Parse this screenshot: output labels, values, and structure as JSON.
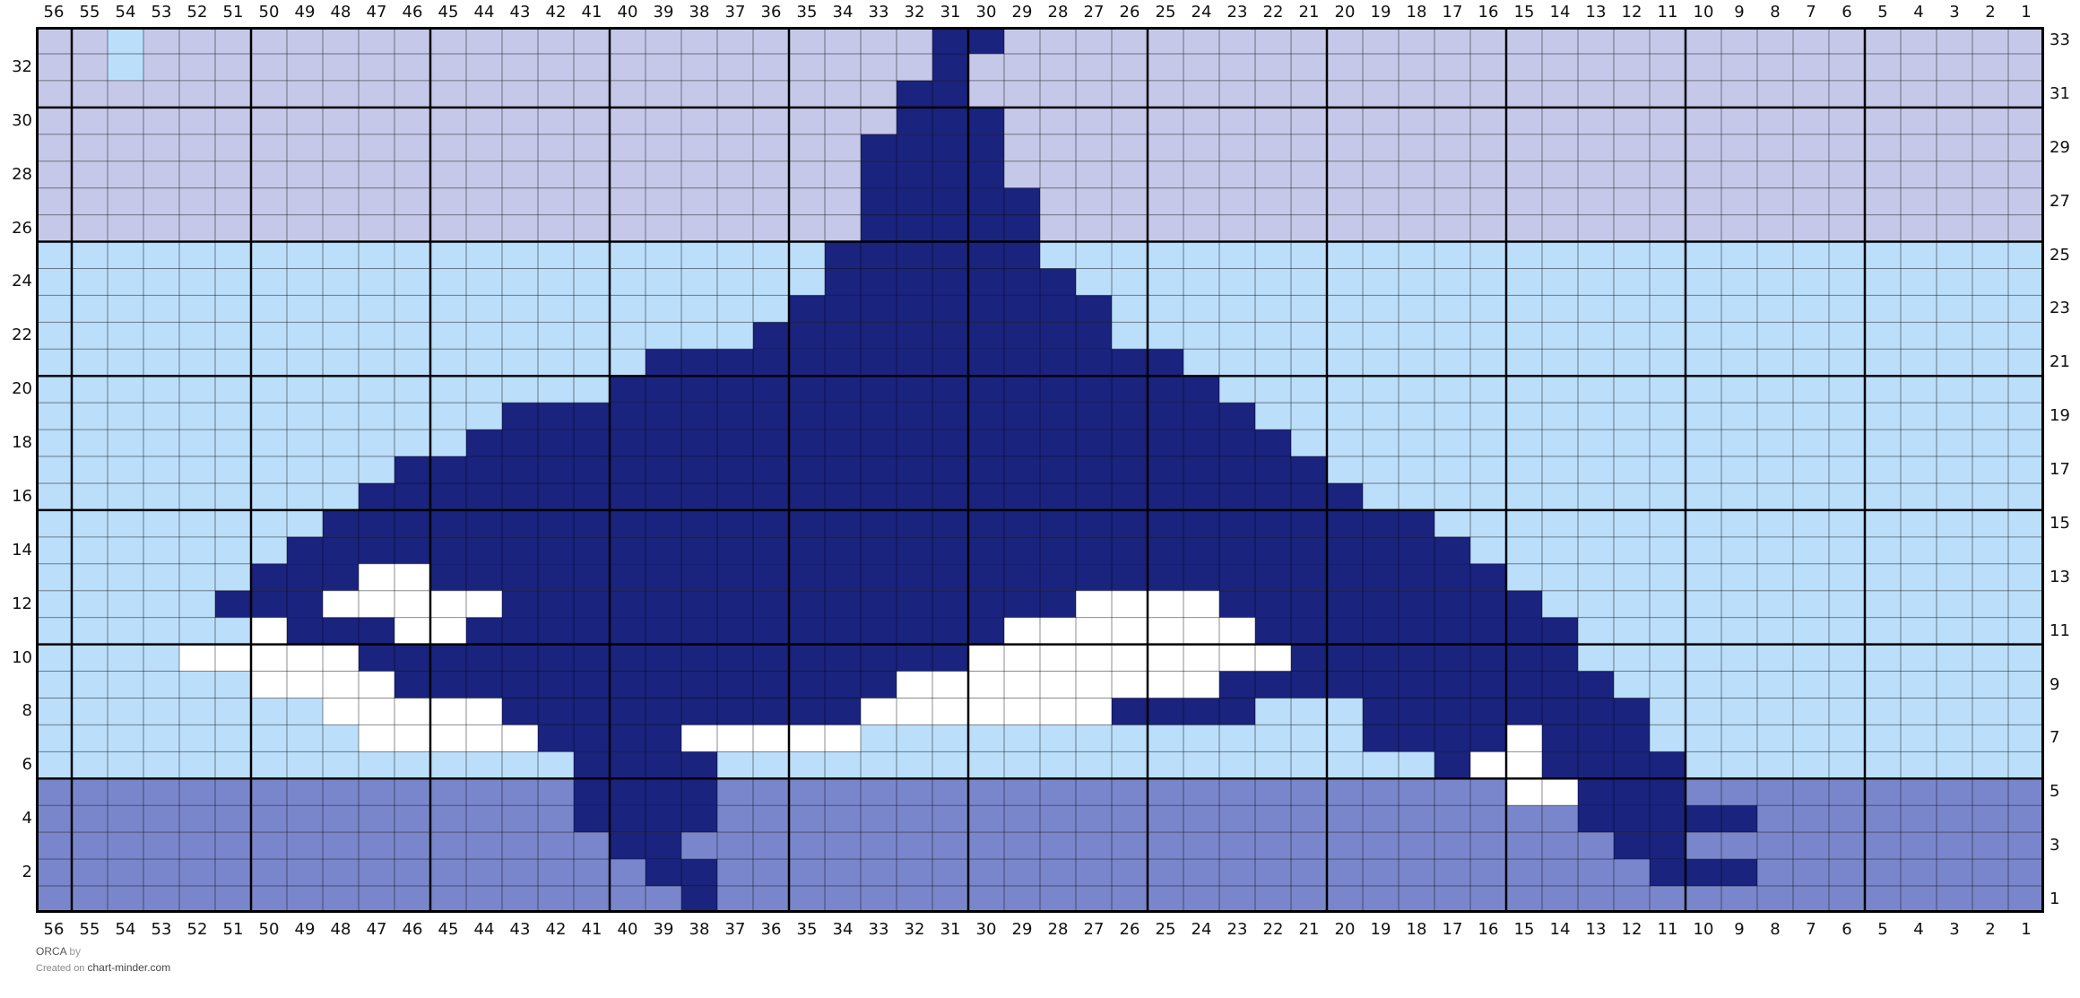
{
  "chart": {
    "columns": 56,
    "rows": 33,
    "column_labels": [
      56,
      55,
      54,
      53,
      52,
      51,
      50,
      49,
      48,
      47,
      46,
      45,
      44,
      43,
      42,
      41,
      40,
      39,
      38,
      37,
      36,
      35,
      34,
      33,
      32,
      31,
      30,
      29,
      28,
      27,
      26,
      25,
      24,
      23,
      22,
      21,
      20,
      19,
      18,
      17,
      16,
      15,
      14,
      13,
      12,
      11,
      10,
      9,
      8,
      7,
      6,
      5,
      4,
      3,
      2,
      1
    ],
    "row_labels_left": [
      32,
      30,
      28,
      26,
      24,
      22,
      20,
      18,
      16,
      14,
      12,
      10,
      8,
      6,
      4,
      2
    ],
    "row_labels_right": [
      33,
      31,
      29,
      27,
      25,
      23,
      21,
      19,
      17,
      15,
      13,
      11,
      9,
      7,
      5,
      3,
      1
    ],
    "palette": {
      "L": "#c5c8e8",
      "B": "#bbdefb",
      "P": "#7986cb",
      "N": "#1a237e",
      "W": "#ffffff"
    },
    "stitch_rows": [
      {
        "row": 33,
        "bg": "L",
        "runs": [
          [
            "B",
            54,
            54
          ],
          [
            "N",
            31,
            30
          ]
        ]
      },
      {
        "row": 32,
        "bg": "L",
        "runs": [
          [
            "B",
            54,
            54
          ],
          [
            "N",
            31,
            31
          ]
        ]
      },
      {
        "row": 31,
        "bg": "L",
        "runs": [
          [
            "N",
            32,
            31
          ]
        ]
      },
      {
        "row": 30,
        "bg": "L",
        "runs": [
          [
            "N",
            32,
            30
          ]
        ]
      },
      {
        "row": 29,
        "bg": "L",
        "runs": [
          [
            "N",
            33,
            30
          ]
        ]
      },
      {
        "row": 28,
        "bg": "L",
        "runs": [
          [
            "N",
            33,
            30
          ]
        ]
      },
      {
        "row": 27,
        "bg": "L",
        "runs": [
          [
            "N",
            33,
            29
          ]
        ]
      },
      {
        "row": 26,
        "bg": "L",
        "runs": [
          [
            "N",
            33,
            29
          ]
        ]
      },
      {
        "row": 25,
        "bg": "B",
        "runs": [
          [
            "N",
            34,
            29
          ]
        ]
      },
      {
        "row": 24,
        "bg": "B",
        "runs": [
          [
            "N",
            34,
            28
          ]
        ]
      },
      {
        "row": 23,
        "bg": "B",
        "runs": [
          [
            "N",
            35,
            27
          ]
        ]
      },
      {
        "row": 22,
        "bg": "B",
        "runs": [
          [
            "N",
            36,
            27
          ]
        ]
      },
      {
        "row": 21,
        "bg": "B",
        "runs": [
          [
            "N",
            39,
            25
          ]
        ]
      },
      {
        "row": 20,
        "bg": "B",
        "runs": [
          [
            "N",
            40,
            24
          ]
        ]
      },
      {
        "row": 19,
        "bg": "B",
        "runs": [
          [
            "N",
            43,
            23
          ]
        ]
      },
      {
        "row": 18,
        "bg": "B",
        "runs": [
          [
            "N",
            44,
            22
          ]
        ]
      },
      {
        "row": 17,
        "bg": "B",
        "runs": [
          [
            "N",
            46,
            21
          ]
        ]
      },
      {
        "row": 16,
        "bg": "B",
        "runs": [
          [
            "N",
            47,
            20
          ]
        ]
      },
      {
        "row": 15,
        "bg": "B",
        "runs": [
          [
            "N",
            48,
            18
          ]
        ]
      },
      {
        "row": 14,
        "bg": "B",
        "runs": [
          [
            "N",
            49,
            17
          ]
        ]
      },
      {
        "row": 13,
        "bg": "B",
        "runs": [
          [
            "N",
            50,
            16
          ],
          [
            "W",
            47,
            46
          ]
        ]
      },
      {
        "row": 12,
        "bg": "B",
        "runs": [
          [
            "N",
            51,
            15
          ],
          [
            "W",
            48,
            44
          ],
          [
            "W",
            27,
            24
          ]
        ]
      },
      {
        "row": 11,
        "bg": "B",
        "runs": [
          [
            "W",
            50,
            50
          ],
          [
            "N",
            49,
            14
          ],
          [
            "W",
            46,
            45
          ],
          [
            "W",
            29,
            23
          ]
        ]
      },
      {
        "row": 10,
        "bg": "B",
        "runs": [
          [
            "W",
            52,
            48
          ],
          [
            "N",
            47,
            14
          ],
          [
            "W",
            30,
            22
          ]
        ]
      },
      {
        "row": 9,
        "bg": "B",
        "runs": [
          [
            "W",
            50,
            47
          ],
          [
            "N",
            46,
            13
          ],
          [
            "W",
            32,
            24
          ]
        ]
      },
      {
        "row": 8,
        "bg": "B",
        "runs": [
          [
            "W",
            48,
            44
          ],
          [
            "N",
            43,
            34
          ],
          [
            "W",
            33,
            27
          ],
          [
            "N",
            26,
            23
          ],
          [
            "N",
            19,
            12
          ]
        ]
      },
      {
        "row": 7,
        "bg": "B",
        "runs": [
          [
            "W",
            47,
            43
          ],
          [
            "N",
            42,
            39
          ],
          [
            "W",
            38,
            34
          ],
          [
            "N",
            19,
            16
          ],
          [
            "W",
            15,
            15
          ],
          [
            "N",
            14,
            12
          ]
        ]
      },
      {
        "row": 6,
        "bg": "B",
        "runs": [
          [
            "N",
            41,
            38
          ],
          [
            "N",
            17,
            17
          ],
          [
            "W",
            16,
            15
          ],
          [
            "N",
            14,
            11
          ]
        ]
      },
      {
        "row": 5,
        "bg": "P",
        "runs": [
          [
            "N",
            41,
            38
          ],
          [
            "W",
            15,
            14
          ],
          [
            "N",
            13,
            11
          ]
        ]
      },
      {
        "row": 4,
        "bg": "P",
        "runs": [
          [
            "N",
            41,
            38
          ],
          [
            "N",
            13,
            9
          ]
        ]
      },
      {
        "row": 3,
        "bg": "P",
        "runs": [
          [
            "N",
            40,
            39
          ],
          [
            "N",
            12,
            11
          ]
        ]
      },
      {
        "row": 2,
        "bg": "P",
        "runs": [
          [
            "N",
            39,
            38
          ],
          [
            "N",
            11,
            9
          ]
        ]
      },
      {
        "row": 1,
        "bg": "P",
        "runs": [
          [
            "N",
            38,
            38
          ]
        ]
      }
    ]
  },
  "footer": {
    "title": "ORCA",
    "by": "by",
    "created_on": "Created on",
    "site": "chart-minder.com"
  }
}
